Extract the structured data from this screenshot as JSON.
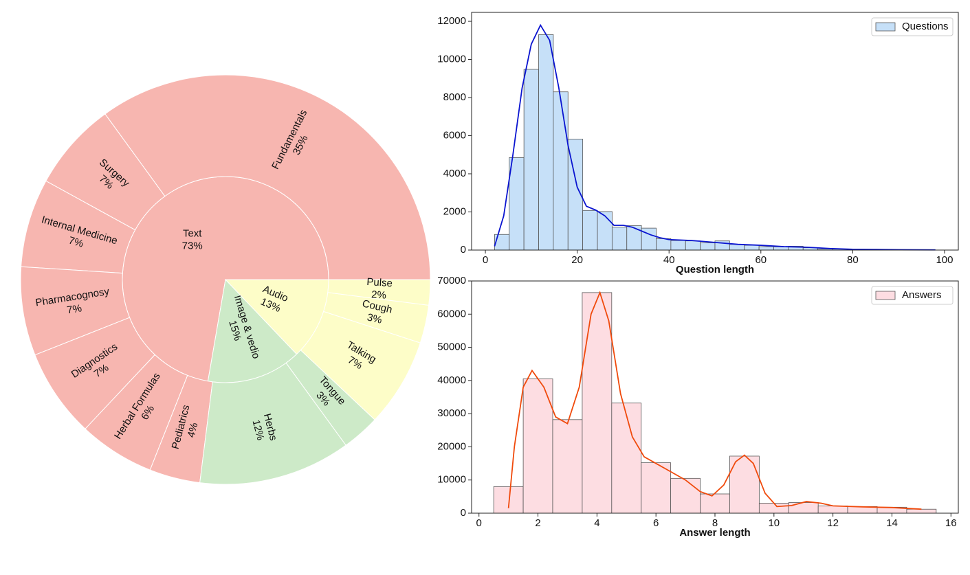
{
  "chart_data": [
    {
      "type": "sunburst",
      "rings": [
        {
          "labels": [
            "Text",
            "Image & vedio",
            "Audio"
          ],
          "values": [
            73,
            15,
            13
          ],
          "value_labels": [
            "73%",
            "15%",
            "13%"
          ],
          "colors": [
            "#f7b6b0",
            "#cdeac8",
            "#fdfdc8"
          ]
        },
        {
          "labels": [
            "Fundamentals",
            "Surgery",
            "Internal Medicine",
            "Pharmacognosy",
            "Diagnostics",
            "Herbal Formulas",
            "Pediatrics",
            "Herbs",
            "Tongue",
            "Talking",
            "Cough",
            "Pulse"
          ],
          "values": [
            35,
            7,
            7,
            7,
            7,
            6,
            4,
            12,
            3,
            7,
            3,
            2
          ],
          "value_labels": [
            "35%",
            "7%",
            "7%",
            "7%",
            "7%",
            "6%",
            "4%",
            "12%",
            "3%",
            "7%",
            "3%",
            "2%"
          ],
          "colors": [
            "#f7b6b0",
            "#f7b6b0",
            "#f7b6b0",
            "#f7b6b0",
            "#f7b6b0",
            "#f7b6b0",
            "#f7b6b0",
            "#cdeac8",
            "#cdeac8",
            "#fdfdc8",
            "#fdfdc8",
            "#fdfdc8"
          ]
        }
      ]
    },
    {
      "type": "histogram",
      "xlabel": "Question length",
      "bins": [
        2,
        5.2,
        8.4,
        11.6,
        14.8,
        18,
        21.2,
        24.4,
        27.6,
        30.8,
        34,
        37.2,
        40.4,
        43.6,
        46.8,
        50,
        53.2,
        56.4,
        59.6,
        62.8,
        66,
        69.2,
        72.4,
        75.6,
        78.8,
        82,
        85.2,
        88.4,
        91.6,
        94.8,
        98
      ],
      "series": [
        {
          "name": "Questions",
          "color": "#c6e0f8",
          "values": [
            820,
            4850,
            9480,
            11300,
            8300,
            5820,
            2080,
            2020,
            1200,
            1280,
            1150,
            600,
            500,
            480,
            380,
            480,
            300,
            250,
            180,
            170,
            200,
            120,
            60,
            50,
            30,
            20,
            20,
            10,
            10,
            10
          ]
        }
      ],
      "kde": {
        "color": "#0a14d0",
        "x": [
          2,
          4,
          6,
          8,
          10,
          12,
          14,
          16,
          18,
          20,
          22,
          24,
          26,
          28,
          30,
          32,
          34,
          36,
          38,
          40,
          45,
          50,
          55,
          60,
          65,
          70,
          75,
          80,
          85,
          90,
          98
        ],
        "values": [
          200,
          1800,
          5000,
          8500,
          10800,
          11800,
          11000,
          8500,
          5500,
          3300,
          2300,
          2100,
          1800,
          1300,
          1300,
          1200,
          1000,
          800,
          650,
          550,
          500,
          400,
          300,
          250,
          180,
          150,
          80,
          40,
          30,
          15,
          10
        ]
      },
      "xlim": [
        -3,
        103
      ],
      "ylim": [
        0,
        12470
      ],
      "xticks": [
        0,
        20,
        40,
        60,
        80,
        100
      ],
      "yticks": [
        0,
        2000,
        4000,
        6000,
        8000,
        10000,
        12000
      ],
      "legend": "upper right"
    },
    {
      "type": "histogram",
      "xlabel": "Answer length",
      "bins": [
        0.5,
        1.5,
        2.5,
        3.5,
        4.5,
        5.5,
        6.5,
        7.5,
        8.5,
        9.5,
        10.5,
        11.5,
        12.5,
        13.5,
        14.5,
        15.5
      ],
      "series": [
        {
          "name": "Answers",
          "color": "#fddde2",
          "values": [
            8000,
            40500,
            28200,
            66500,
            33200,
            15200,
            10500,
            5800,
            17200,
            3000,
            3200,
            2200,
            2000,
            1800,
            1200
          ]
        }
      ],
      "kde": {
        "color": "#f04a0c",
        "x": [
          1,
          1.2,
          1.5,
          1.8,
          2.2,
          2.6,
          3,
          3.4,
          3.8,
          4.1,
          4.4,
          4.8,
          5.2,
          5.6,
          6,
          6.5,
          7,
          7.5,
          7.9,
          8.3,
          8.7,
          9,
          9.3,
          9.7,
          10.1,
          10.6,
          11.1,
          11.6,
          12,
          13,
          14,
          15
        ],
        "values": [
          1500,
          20000,
          38000,
          43000,
          38000,
          29000,
          27000,
          38000,
          60000,
          66500,
          58000,
          36000,
          23000,
          17000,
          15000,
          12500,
          10000,
          6500,
          5200,
          8500,
          15500,
          17500,
          15000,
          6000,
          2000,
          2300,
          3500,
          3000,
          2200,
          1900,
          1700,
          1200
        ]
      },
      "xlim": [
        -0.25,
        16.25
      ],
      "ylim": [
        0,
        70000
      ],
      "xticks": [
        0,
        2,
        4,
        6,
        8,
        10,
        12,
        14,
        16
      ],
      "yticks": [
        0,
        10000,
        20000,
        30000,
        40000,
        50000,
        60000,
        70000
      ],
      "legend": "upper right"
    }
  ]
}
